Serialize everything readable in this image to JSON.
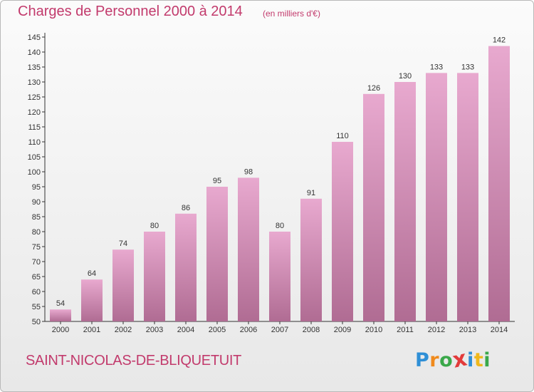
{
  "title": "Charges de Personnel 2000 à 2014",
  "subtitle": "(en milliers d'€)",
  "commune": "SAINT-NICOLAS-DE-BLIQUETUIT",
  "logo": {
    "letters": [
      {
        "char": "P",
        "color": "#2f8fd6"
      },
      {
        "char": "r",
        "color": "#f08a1c"
      },
      {
        "char": "o",
        "color": "#3aa84a"
      },
      {
        "char": "x",
        "color": "#e23b3b"
      },
      {
        "char": "i",
        "color": "#2f8fd6"
      },
      {
        "char": "t",
        "color": "#f0b81c"
      },
      {
        "char": "i",
        "color": "#3aa84a"
      }
    ]
  },
  "colors": {
    "title": "#c23a6c",
    "bar_top": "#e8a9cf",
    "bar_bottom": "#b06c93",
    "axis": "#333333"
  },
  "chart_data": {
    "type": "bar",
    "categories": [
      "2000",
      "2001",
      "2002",
      "2003",
      "2004",
      "2005",
      "2006",
      "2007",
      "2008",
      "2009",
      "2010",
      "2011",
      "2012",
      "2013",
      "2014"
    ],
    "values": [
      54,
      64,
      74,
      80,
      86,
      95,
      98,
      80,
      91,
      110,
      126,
      130,
      133,
      133,
      142
    ],
    "yticks": [
      50,
      55,
      60,
      65,
      70,
      75,
      80,
      85,
      90,
      95,
      100,
      105,
      110,
      115,
      120,
      125,
      130,
      135,
      140,
      145
    ],
    "ylim": [
      50,
      145
    ],
    "grid": false,
    "legend": "none"
  }
}
